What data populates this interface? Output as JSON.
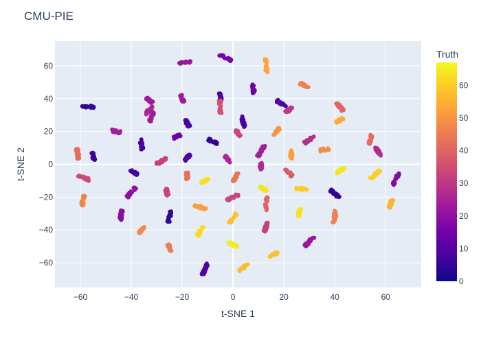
{
  "chart_data": {
    "type": "scatter",
    "title": "CMU-PIE",
    "xlabel": "t-SNE 1",
    "ylabel": "t-SNE 2",
    "xlim": [
      -70,
      74
    ],
    "ylim": [
      -75,
      75
    ],
    "x_ticks": [
      -60,
      -40,
      -20,
      0,
      20,
      40,
      60
    ],
    "y_ticks": [
      -60,
      -40,
      -20,
      0,
      20,
      40,
      60
    ],
    "grid": true,
    "colorbar": {
      "title": "Truth",
      "range": [
        0,
        67
      ],
      "ticks": [
        0,
        10,
        20,
        30,
        40,
        50,
        60
      ],
      "colorscale": [
        "#0d0887",
        "#46039f",
        "#7201a8",
        "#9c179e",
        "#bd3786",
        "#d8576b",
        "#ed7953",
        "#fb9f3a",
        "#fdca26",
        "#f0f921"
      ]
    },
    "clusters": [
      {
        "x": -57,
        "y": 35,
        "truth": 5
      },
      {
        "x": -55,
        "y": 5,
        "truth": 6
      },
      {
        "x": -61,
        "y": 6,
        "truth": 42
      },
      {
        "x": -59,
        "y": -8,
        "truth": 34
      },
      {
        "x": -59,
        "y": -22,
        "truth": 47
      },
      {
        "x": -46,
        "y": 20,
        "truth": 24
      },
      {
        "x": -36,
        "y": 12,
        "truth": 8
      },
      {
        "x": -39,
        "y": -5,
        "truth": 7
      },
      {
        "x": -40,
        "y": -17,
        "truth": 20
      },
      {
        "x": -44,
        "y": -31,
        "truth": 19
      },
      {
        "x": -36,
        "y": -40,
        "truth": 48
      },
      {
        "x": -33,
        "y": 39,
        "truth": 23
      },
      {
        "x": -33,
        "y": 33,
        "truth": 26
      },
      {
        "x": -32,
        "y": 29,
        "truth": 23
      },
      {
        "x": -28,
        "y": 2,
        "truth": 32
      },
      {
        "x": -26,
        "y": -17,
        "truth": 33
      },
      {
        "x": -25,
        "y": -32,
        "truth": 5
      },
      {
        "x": -25,
        "y": -51,
        "truth": 45
      },
      {
        "x": -19,
        "y": 62,
        "truth": 22
      },
      {
        "x": -20,
        "y": 40,
        "truth": 23
      },
      {
        "x": -18,
        "y": 25,
        "truth": 8
      },
      {
        "x": -22,
        "y": 17,
        "truth": 15
      },
      {
        "x": -18,
        "y": 4,
        "truth": 10
      },
      {
        "x": -18,
        "y": -7,
        "truth": 43
      },
      {
        "x": -11,
        "y": -10,
        "truth": 63
      },
      {
        "x": -13,
        "y": -26,
        "truth": 52
      },
      {
        "x": -13,
        "y": -41,
        "truth": 62
      },
      {
        "x": -11,
        "y": -64,
        "truth": 10
      },
      {
        "x": -5,
        "y": 41,
        "truth": 10
      },
      {
        "x": -5,
        "y": 35,
        "truth": 36
      },
      {
        "x": -8,
        "y": 14,
        "truth": 5
      },
      {
        "x": -2,
        "y": 3,
        "truth": 26
      },
      {
        "x": -3,
        "y": 65,
        "truth": 16
      },
      {
        "x": 2,
        "y": 19,
        "truth": 33
      },
      {
        "x": 4,
        "y": 26,
        "truth": 8
      },
      {
        "x": 1,
        "y": -8,
        "truth": 44
      },
      {
        "x": 0,
        "y": -20,
        "truth": 33
      },
      {
        "x": 0,
        "y": -33,
        "truth": 58
      },
      {
        "x": 0,
        "y": -49,
        "truth": 65
      },
      {
        "x": 4,
        "y": -63,
        "truth": 57
      },
      {
        "x": 8,
        "y": 46,
        "truth": 14
      },
      {
        "x": 11,
        "y": 8,
        "truth": 24
      },
      {
        "x": 11,
        "y": -1,
        "truth": 27
      },
      {
        "x": 12,
        "y": -15,
        "truth": 64
      },
      {
        "x": 13,
        "y": -24,
        "truth": 40
      },
      {
        "x": 13,
        "y": -38,
        "truth": 32
      },
      {
        "x": 13,
        "y": 60,
        "truth": 53
      },
      {
        "x": 17,
        "y": 20,
        "truth": 50
      },
      {
        "x": 19,
        "y": 37,
        "truth": 9
      },
      {
        "x": 16,
        "y": -55,
        "truth": 58
      },
      {
        "x": 22,
        "y": 33,
        "truth": 30
      },
      {
        "x": 23,
        "y": 6,
        "truth": 52
      },
      {
        "x": 22,
        "y": -5,
        "truth": 38
      },
      {
        "x": 27,
        "y": -15,
        "truth": 60
      },
      {
        "x": 26,
        "y": -30,
        "truth": 63
      },
      {
        "x": 28,
        "y": 48,
        "truth": 46
      },
      {
        "x": 30,
        "y": 15,
        "truth": 28
      },
      {
        "x": 30,
        "y": -47,
        "truth": 22
      },
      {
        "x": 36,
        "y": 9,
        "truth": 48
      },
      {
        "x": 42,
        "y": 27,
        "truth": 54
      },
      {
        "x": 42,
        "y": 35,
        "truth": 40
      },
      {
        "x": 42,
        "y": -4,
        "truth": 64
      },
      {
        "x": 40,
        "y": -18,
        "truth": 4
      },
      {
        "x": 40,
        "y": -32,
        "truth": 46
      },
      {
        "x": 54,
        "y": 15,
        "truth": 42
      },
      {
        "x": 57,
        "y": 8,
        "truth": 27
      },
      {
        "x": 56,
        "y": -6,
        "truth": 60
      },
      {
        "x": 62,
        "y": -24,
        "truth": 56
      },
      {
        "x": 64,
        "y": -9,
        "truth": 18
      }
    ]
  }
}
